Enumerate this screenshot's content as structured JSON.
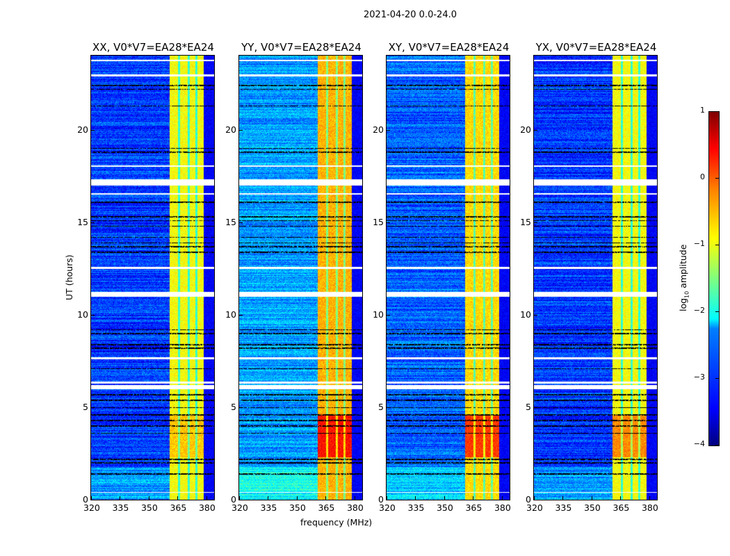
{
  "suptitle": "2021-04-20 0.0-24.0",
  "chart_data": {
    "type": "heatmap",
    "title": "2021-04-20 0.0-24.0",
    "xlabel": "frequency (MHz)",
    "ylabel": "UT (hours)",
    "xlim": [
      320,
      384
    ],
    "ylim": [
      0,
      24
    ],
    "xticks": [
      "320",
      "335",
      "350",
      "365",
      "380"
    ],
    "xtick_values": [
      320,
      335,
      350,
      365,
      380
    ],
    "yticks": [
      "0",
      "5",
      "10",
      "15",
      "20"
    ],
    "ytick_values": [
      0,
      5,
      10,
      15,
      20
    ],
    "colorbar": {
      "label_main": "log",
      "label_sub": "10",
      "label_rest": " amplitude",
      "range": [
        -4,
        1
      ],
      "ticks": [
        "1",
        "0",
        "−1",
        "−2",
        "−3",
        "−4"
      ],
      "tick_values": [
        1,
        0,
        -1,
        -2,
        -3,
        -4
      ],
      "colormap": "jet"
    },
    "panels": [
      {
        "title": "XX, V0*V7=EA28*EA24",
        "low_band_level": -3.1,
        "high_band_level": -0.9,
        "burst_boost": 0.3
      },
      {
        "title": "YY, V0*V7=EA28*EA24",
        "low_band_level": -2.6,
        "high_band_level": -0.5,
        "burst_boost": 0.8
      },
      {
        "title": "XY, V0*V7=EA28*EA24",
        "low_band_level": -2.9,
        "high_band_level": -0.7,
        "burst_boost": 0.8
      },
      {
        "title": "YX, V0*V7=EA28*EA24",
        "low_band_level": -3.1,
        "high_band_level": -0.9,
        "burst_boost": 0.6
      }
    ],
    "high_band_mhz": [
      360.5,
      378.5
    ],
    "dark_channels_mhz": [
      365.5,
      370.5,
      374.5
    ],
    "burst_hours": [
      2.3,
      4.6
    ],
    "flagged_hours": [
      [
        17.0,
        17.35
      ],
      [
        11.0,
        11.25
      ],
      [
        6.0,
        6.2
      ],
      [
        6.3,
        6.4
      ],
      [
        23.7,
        23.8
      ],
      [
        12.5,
        12.6
      ],
      [
        16.5,
        16.6
      ],
      [
        18.0,
        18.1
      ],
      [
        22.9,
        23.0
      ],
      [
        7.6,
        7.7
      ],
      [
        0.4,
        0.45
      ]
    ],
    "black_hours": [
      22.2,
      22.4,
      21.3,
      18.8,
      19.0,
      16.1,
      15.3,
      15.1,
      14.8,
      14.2,
      13.9,
      13.7,
      13.4,
      9.2,
      9.0,
      8.4,
      8.2,
      7.1,
      5.7,
      5.4,
      5.0,
      4.6,
      4.3,
      4.0,
      3.6,
      2.2,
      2.0,
      1.4
    ]
  }
}
